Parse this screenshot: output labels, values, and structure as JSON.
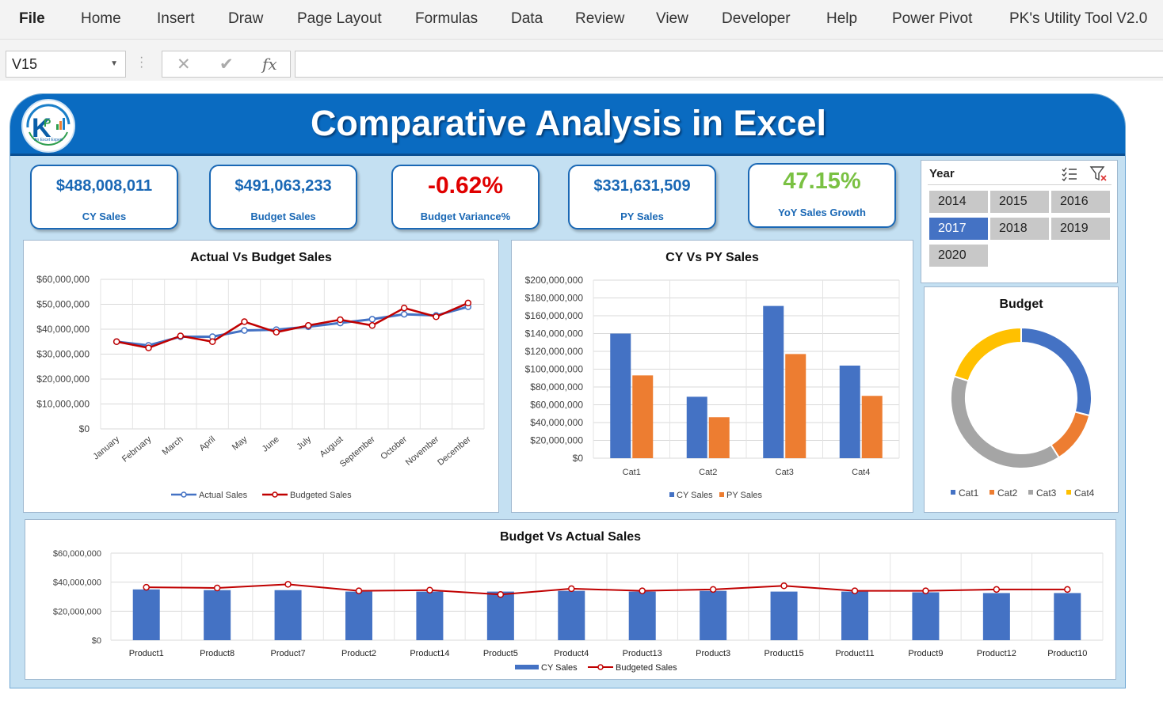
{
  "ribbon": {
    "tabs": [
      "File",
      "Home",
      "Insert",
      "Draw",
      "Page Layout",
      "Formulas",
      "Data",
      "Review",
      "View",
      "Developer",
      "Help",
      "Power Pivot",
      "PK's Utility Tool V2.0"
    ]
  },
  "formula_bar": {
    "name_box": "V15",
    "cancel_icon": "✕",
    "enter_icon": "✔",
    "fx_label": "fx",
    "formula": ""
  },
  "dashboard": {
    "title": "Comparative Analysis in Excel",
    "logo_text": "PK",
    "logo_caption": "An Excel Expert",
    "kpis": [
      {
        "value": "$488,008,011",
        "label": "CY Sales"
      },
      {
        "value": "$491,063,233",
        "label": "Budget Sales"
      },
      {
        "value": "-0.62%",
        "label": "Budget Variance%"
      },
      {
        "value": "$331,631,509",
        "label": "PY Sales"
      },
      {
        "value": "47.15%",
        "label": "YoY Sales Growth"
      }
    ],
    "colors": {
      "banner": "#0a6bc1",
      "kpi_text": "#1a68b5",
      "negative": "#e00000",
      "positive": "#7ac143",
      "blue": "#4472c4",
      "orange": "#ed7d31",
      "gray": "#a5a5a5",
      "yellow": "#ffc000",
      "red_line": "#c00000"
    }
  },
  "slicer": {
    "title": "Year",
    "multi_select_icon": "multi-select-icon",
    "clear_filter_icon": "clear-filter-icon",
    "years": [
      "2014",
      "2015",
      "2016",
      "2017",
      "2018",
      "2019",
      "2020"
    ],
    "selected": "2017"
  },
  "chart_data": [
    {
      "id": "actual_vs_budget",
      "type": "line",
      "title": "Actual Vs Budget Sales",
      "categories": [
        "January",
        "February",
        "March",
        "April",
        "May",
        "June",
        "July",
        "August",
        "September",
        "October",
        "November",
        "December"
      ],
      "ylim": [
        0,
        60000000
      ],
      "yticks": [
        "$0",
        "$10,000,000",
        "$20,000,000",
        "$30,000,000",
        "$40,000,000",
        "$50,000,000",
        "$60,000,000"
      ],
      "series": [
        {
          "name": "Actual Sales",
          "values": [
            35000000,
            33500000,
            37000000,
            37000000,
            39500000,
            39800000,
            41000000,
            42500000,
            44000000,
            46000000,
            45500000,
            49000000
          ]
        },
        {
          "name": "Budgeted Sales",
          "values": [
            35000000,
            32500000,
            37300000,
            35000000,
            43000000,
            38800000,
            41500000,
            43800000,
            41500000,
            48500000,
            45000000,
            50500000
          ]
        }
      ],
      "legend": "bottom"
    },
    {
      "id": "cy_vs_py",
      "type": "bar",
      "title": "CY Vs PY Sales",
      "categories": [
        "Cat1",
        "Cat2",
        "Cat3",
        "Cat4"
      ],
      "ylim": [
        0,
        200000000
      ],
      "yticks": [
        "$0",
        "$20,000,000",
        "$40,000,000",
        "$60,000,000",
        "$80,000,000",
        "$100,000,000",
        "$120,000,000",
        "$140,000,000",
        "$160,000,000",
        "$180,000,000",
        "$200,000,000"
      ],
      "series": [
        {
          "name": "CY Sales",
          "values": [
            140000000,
            69000000,
            171000000,
            104000000
          ]
        },
        {
          "name": "PY Sales",
          "values": [
            93000000,
            46000000,
            117000000,
            70000000
          ]
        }
      ],
      "legend": "bottom"
    },
    {
      "id": "budget_donut",
      "type": "pie",
      "title": "Budget",
      "categories": [
        "Cat1",
        "Cat2",
        "Cat3",
        "Cat4"
      ],
      "values": [
        29,
        12,
        39,
        20
      ],
      "legend": "bottom"
    },
    {
      "id": "budget_vs_actual",
      "type": "bar",
      "title": "Budget Vs Actual Sales",
      "categories": [
        "Product1",
        "Product8",
        "Product7",
        "Product2",
        "Product14",
        "Product5",
        "Product4",
        "Product13",
        "Product3",
        "Product15",
        "Product11",
        "Product9",
        "Product12",
        "Product10"
      ],
      "ylim": [
        0,
        60000000
      ],
      "yticks": [
        "$0",
        "$20,000,000",
        "$40,000,000",
        "$60,000,000"
      ],
      "series": [
        {
          "name": "CY Sales",
          "values": [
            35000000,
            34500000,
            34500000,
            33500000,
            33500000,
            33500000,
            34000000,
            33500000,
            34000000,
            33500000,
            33500000,
            33000000,
            32500000,
            32500000
          ]
        },
        {
          "name": "Budgeted Sales",
          "values": [
            36500000,
            36000000,
            38500000,
            34000000,
            34500000,
            31500000,
            35500000,
            34000000,
            35000000,
            37500000,
            34000000,
            34000000,
            35000000,
            35000000
          ]
        }
      ],
      "legend": "bottom"
    }
  ]
}
